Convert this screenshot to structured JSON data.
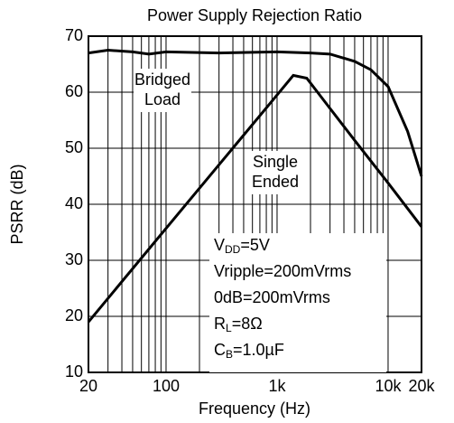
{
  "chart_data": {
    "type": "line",
    "title": "Power Supply Rejection Ratio",
    "xlabel": "Frequency (Hz)",
    "ylabel": "PSRR (dB)",
    "xscale": "log",
    "xlim": [
      20,
      20000
    ],
    "ylim": [
      10,
      70
    ],
    "xticks": [
      20,
      100,
      {
        "value": 1000,
        "label": "1k"
      },
      {
        "value": 10000,
        "label": "10k"
      },
      {
        "value": 20000,
        "label": "20k"
      }
    ],
    "xminorticks": [
      30,
      40,
      50,
      60,
      70,
      80,
      90,
      200,
      300,
      400,
      500,
      600,
      700,
      800,
      900,
      2000,
      3000,
      4000,
      5000,
      6000,
      7000,
      8000,
      9000
    ],
    "yticks": [
      10,
      20,
      30,
      40,
      50,
      60,
      70
    ],
    "grid": true,
    "series": [
      {
        "name": "Bridged Load",
        "color": "#000000",
        "x": [
          20,
          30,
          50,
          70,
          100,
          300,
          1000,
          2000,
          3000,
          5000,
          7000,
          10000,
          15000,
          20000
        ],
        "values": [
          67,
          67.5,
          67.2,
          66.8,
          67.2,
          67,
          67.2,
          67,
          66.8,
          65.5,
          64,
          61,
          53,
          45
        ]
      },
      {
        "name": "Single Ended",
        "color": "#000000",
        "x": [
          20,
          100,
          1000,
          1400,
          1850,
          3000,
          5000,
          10000,
          20000
        ],
        "values": [
          19,
          35.7,
          59.5,
          63,
          62.5,
          57.1,
          51.4,
          43.8,
          36
        ]
      }
    ],
    "annotations": [
      {
        "lines": [
          "Bridged",
          "Load"
        ]
      },
      {
        "lines": [
          "Single",
          "Ended"
        ]
      },
      {
        "lines": [
          [
            {
              "text": "V"
            },
            {
              "text": "DD",
              "sub": true
            },
            {
              "text": "=5V"
            }
          ],
          [
            {
              "text": "Vripple=200mVrms"
            }
          ],
          [
            {
              "text": "0dB=200mVrms"
            }
          ],
          [
            {
              "text": "R"
            },
            {
              "text": "L",
              "sub": true
            },
            {
              "text": "=8Ω"
            }
          ],
          [
            {
              "text": "C"
            },
            {
              "text": "B",
              "sub": true
            },
            {
              "text": "=1.0µF"
            }
          ]
        ]
      }
    ]
  }
}
